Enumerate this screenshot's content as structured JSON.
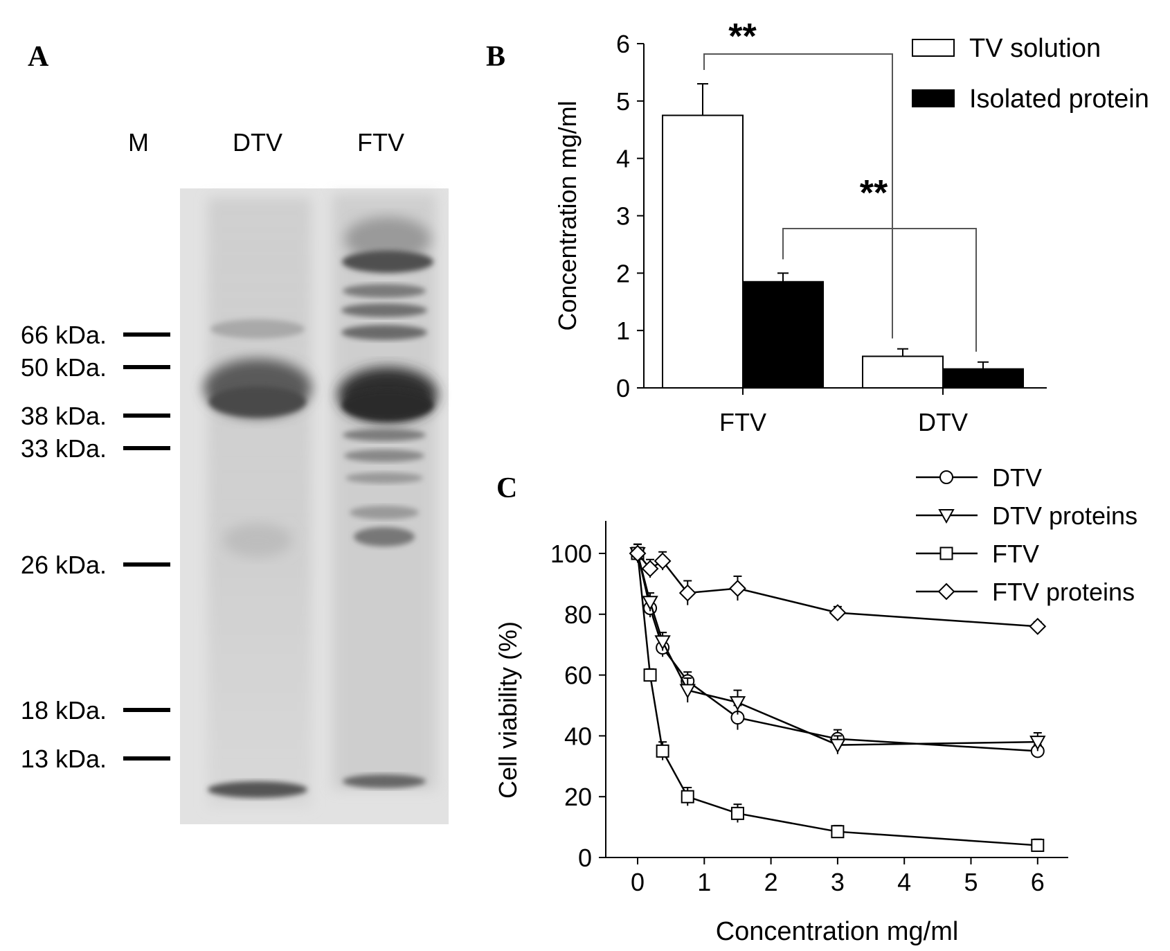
{
  "panel_a": {
    "letter": "A",
    "lanes": [
      "M",
      "DTV",
      "FTV"
    ],
    "markers": [
      {
        "label": "66 kDa.",
        "kda": 66
      },
      {
        "label": "50 kDa.",
        "kda": 50
      },
      {
        "label": "38 kDa.",
        "kda": 38
      },
      {
        "label": "33 kDa.",
        "kda": 33
      },
      {
        "label": "26 kDa.",
        "kda": 26
      },
      {
        "label": "18 kDa.",
        "kda": 18
      },
      {
        "label": "13 kDa.",
        "kda": 13
      }
    ]
  },
  "panel_b": {
    "letter": "B"
  },
  "panel_c": {
    "letter": "C"
  },
  "chart_data": [
    {
      "type": "bar",
      "title": "",
      "xlabel": "",
      "ylabel": "Concentration mg/ml",
      "ylim": [
        0,
        6
      ],
      "yticks": [
        "0",
        "1",
        "2",
        "3",
        "4",
        "5",
        "6"
      ],
      "categories": [
        "FTV",
        "DTV"
      ],
      "series": [
        {
          "name": "TV solution",
          "values": [
            4.75,
            0.55
          ],
          "errors": [
            0.55,
            0.13
          ],
          "color": "#ffffff"
        },
        {
          "name": "Isolated protein",
          "values": [
            1.85,
            0.33
          ],
          "errors": [
            0.15,
            0.12
          ],
          "color": "#000000"
        }
      ],
      "significance": [
        {
          "label": "**",
          "between": [
            "FTV TV solution",
            "DTV TV solution"
          ]
        },
        {
          "label": "**",
          "between": [
            "FTV Isolated protein",
            "DTV Isolated protein"
          ]
        }
      ],
      "legend_position": "top-right",
      "grid": false
    },
    {
      "type": "line",
      "title": "",
      "xlabel": "Concentration mg/ml",
      "ylabel": "Cell viability (%)",
      "xlim": [
        -0.5,
        6.5
      ],
      "ylim": [
        0,
        110
      ],
      "xticks": [
        "0",
        "1",
        "2",
        "3",
        "4",
        "5",
        "6"
      ],
      "yticks": [
        "0",
        "20",
        "40",
        "60",
        "80",
        "100"
      ],
      "x": [
        0,
        0.1875,
        0.375,
        0.75,
        1.5,
        3,
        6
      ],
      "series": [
        {
          "name": "DTV",
          "marker": "circle",
          "values": [
            100,
            82,
            69,
            58,
            46,
            39,
            35
          ],
          "errors": [
            3,
            3,
            3,
            3,
            4,
            3,
            2
          ]
        },
        {
          "name": "DTV proteins",
          "marker": "triangle-down",
          "values": [
            100,
            84,
            71,
            55,
            51,
            37,
            38
          ],
          "errors": [
            3,
            3,
            3,
            4,
            4,
            3,
            3
          ]
        },
        {
          "name": "FTV",
          "marker": "square",
          "values": [
            100,
            60,
            35,
            20,
            14.5,
            8.5,
            4
          ],
          "errors": [
            3,
            2,
            3,
            3,
            3,
            2,
            2
          ]
        },
        {
          "name": "FTV proteins",
          "marker": "diamond",
          "values": [
            100,
            95,
            97.5,
            87,
            88.5,
            80.5,
            76
          ],
          "errors": [
            3,
            3,
            3,
            4,
            4,
            2,
            1.5
          ]
        }
      ],
      "legend_position": "top-right",
      "grid": false
    }
  ]
}
